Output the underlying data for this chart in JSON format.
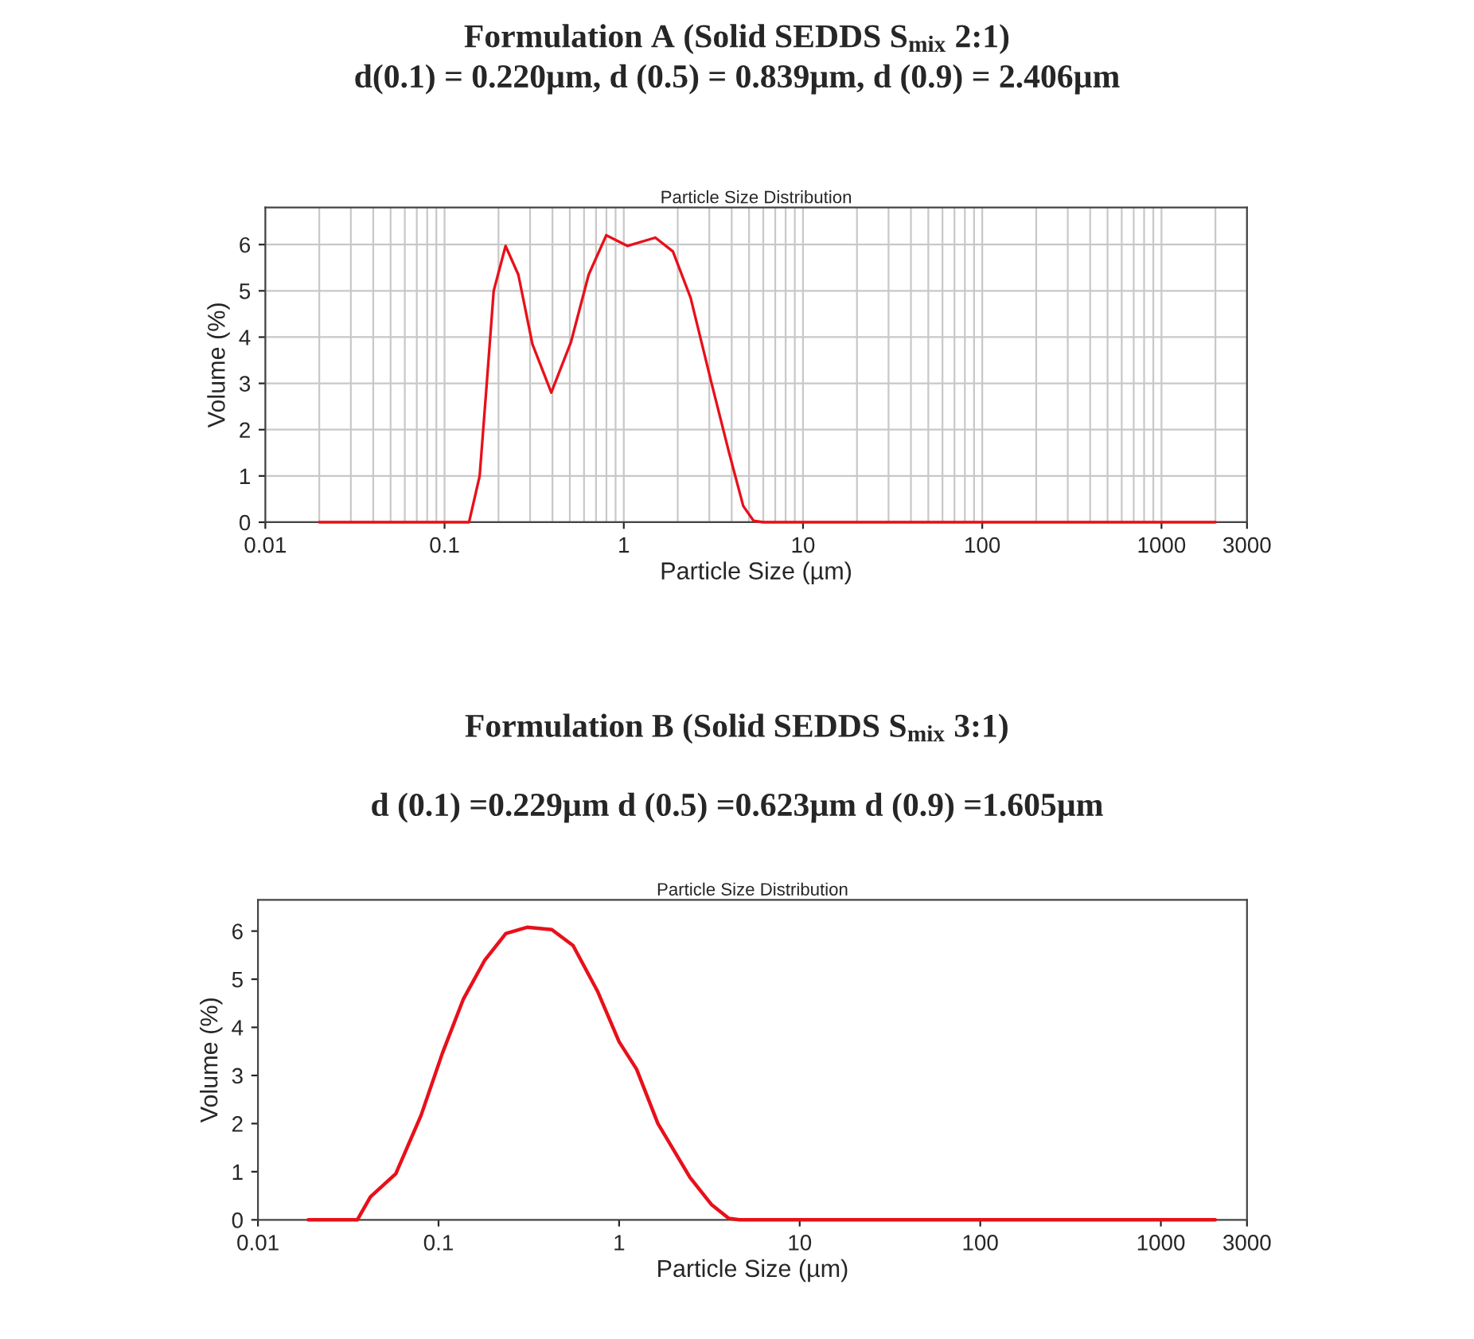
{
  "chart_data": [
    {
      "type": "line",
      "title": "Formulation A (Solid SEDDS S$_{mix}$ 2:1)",
      "subtitle": "d(0.1) = 0.220µm, d (0.5) = 0.839µm, d (0.9) = 2.406µm",
      "annotations": [
        "Particle Size Distribution"
      ],
      "xlabel": "Particle Size (µm)",
      "ylabel": "Volume (%)",
      "log": "x",
      "grid": true,
      "xlim": [
        0.01,
        3000
      ],
      "xticks": [
        0.01,
        0.1,
        1,
        10,
        100,
        1000,
        3000
      ],
      "ylim": [
        0,
        6.8
      ],
      "yticks": [
        0,
        1,
        2,
        3,
        4,
        5,
        6
      ],
      "series": [
        {
          "color": "#e8101a",
          "x": [
            0.02,
            0.137,
            0.157,
            0.172,
            0.188,
            0.219,
            0.258,
            0.309,
            0.394,
            0.508,
            0.637,
            0.798,
            1.05,
            1.5,
            1.88,
            2.36,
            3.09,
            3.87,
            4.64,
            5.3,
            6,
            2000
          ],
          "values": [
            0,
            0,
            1,
            3,
            5,
            5.97,
            5.35,
            3.85,
            2.8,
            3.9,
            5.35,
            6.2,
            5.97,
            6.15,
            5.85,
            4.85,
            3.0,
            1.5,
            0.35,
            0.03,
            0,
            0
          ]
        }
      ]
    },
    {
      "type": "line",
      "title": "Formulation B (Solid SEDDS S$_{mix}$ 3:1)",
      "subtitle": "d (0.1) =0.229µm d (0.5) =0.623µm d (0.9) =1.605µm",
      "annotations": [
        "Particle Size Distribution"
      ],
      "xlabel": "Particle Size (µm)",
      "ylabel": "Volume (%)",
      "log": "x",
      "xlim": [
        0.01,
        3000
      ],
      "xticks": [
        0.01,
        0.1,
        1,
        10,
        100,
        1000,
        3000
      ],
      "ylim": [
        0,
        6.65
      ],
      "yticks": [
        0,
        1,
        2,
        3,
        4,
        5,
        6
      ],
      "series": [
        {
          "color": "#e8101a",
          "x": [
            0.019,
            0.0355,
            0.042,
            0.058,
            0.08,
            0.105,
            0.137,
            0.18,
            0.236,
            0.309,
            0.424,
            0.556,
            0.762,
            1,
            1.25,
            1.64,
            2.47,
            3.24,
            4.05,
            4.64,
            2000
          ],
          "values": [
            0,
            0,
            0.48,
            0.96,
            2.17,
            3.46,
            4.58,
            5.39,
            5.95,
            6.08,
            6.03,
            5.7,
            4.74,
            3.7,
            3.13,
            2.0,
            0.88,
            0.32,
            0.03,
            0,
            0
          ]
        }
      ]
    }
  ]
}
